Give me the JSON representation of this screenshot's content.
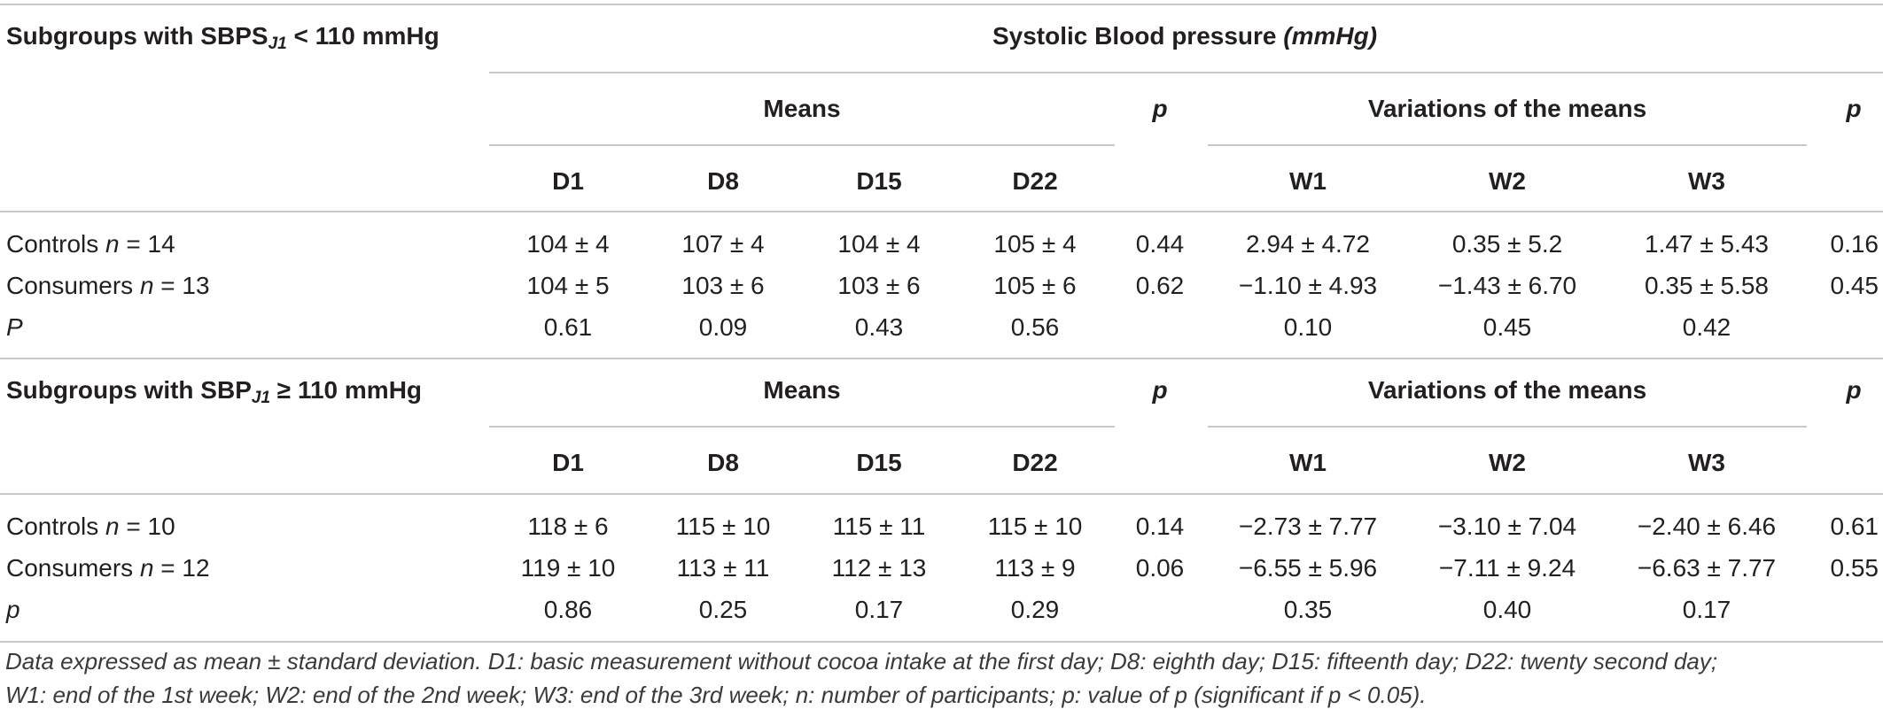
{
  "header": {
    "subgroup1_prefix": "Subgroups with SBPS",
    "subgroup1_sub": "J1",
    "subgroup1_suffix": " < 110 mmHg",
    "title_main": "Systolic Blood pressure ",
    "title_unit": "(mmHg)"
  },
  "labels": {
    "means": "Means",
    "p": "p",
    "variations": "Variations of the means"
  },
  "days": [
    "D1",
    "D8",
    "D15",
    "D22"
  ],
  "weeks": [
    "W1",
    "W2",
    "W3"
  ],
  "group1": {
    "rows": [
      {
        "label": "Controls ",
        "n_label": "n",
        "n_value": " = 14",
        "means": [
          "104 ± 4",
          "107 ± 4",
          "104 ± 4",
          "105 ± 4"
        ],
        "p_means": "0.44",
        "variations": [
          "2.94 ± 4.72",
          "0.35 ± 5.2",
          "1.47 ± 5.43"
        ],
        "p_var": "0.16"
      },
      {
        "label": "Consumers ",
        "n_label": "n",
        "n_value": " = 13",
        "means": [
          "104 ± 5",
          "103 ± 6",
          "103 ± 6",
          "105 ± 6"
        ],
        "p_means": "0.62",
        "variations": [
          "−1.10 ± 4.93",
          "−1.43 ± 6.70",
          "0.35 ± 5.58"
        ],
        "p_var": "0.45"
      }
    ],
    "p_row": {
      "label": "P",
      "means": [
        "0.61",
        "0.09",
        "0.43",
        "0.56"
      ],
      "variations": [
        "0.10",
        "0.45",
        "0.42"
      ]
    }
  },
  "group2": {
    "header_prefix": "Subgroups with SBP",
    "header_sub": "J1",
    "header_suffix": " ≥ 110 mmHg",
    "rows": [
      {
        "label": "Controls ",
        "n_label": "n",
        "n_value": " = 10",
        "means": [
          "118 ± 6",
          "115 ± 10",
          "115 ± 11",
          "115 ± 10"
        ],
        "p_means": "0.14",
        "variations": [
          "−2.73 ± 7.77",
          "−3.10 ± 7.04",
          "−2.40 ± 6.46"
        ],
        "p_var": "0.61"
      },
      {
        "label": "Consumers ",
        "n_label": "n",
        "n_value": " = 12",
        "means": [
          "119 ± 10",
          "113 ± 11",
          "112 ± 13",
          "113 ± 9"
        ],
        "p_means": "0.06",
        "variations": [
          "−6.55 ± 5.96",
          "−7.11 ± 9.24",
          "−6.63 ± 7.77"
        ],
        "p_var": "0.55"
      }
    ],
    "p_row": {
      "label": "p",
      "means": [
        "0.86",
        "0.25",
        "0.17",
        "0.29"
      ],
      "variations": [
        "0.35",
        "0.40",
        "0.17"
      ]
    }
  },
  "footnote": {
    "line1": "Data expressed as mean ± standard deviation. D1: basic measurement without cocoa intake at the first day; D8: eighth day; D15: fifteenth day; D22: twenty second day;",
    "line2": "W1: end of the 1st week; W2: end of the 2nd week; W3: end of the 3rd week; n: number of participants; p: value of p (significant if p < 0.05)."
  }
}
